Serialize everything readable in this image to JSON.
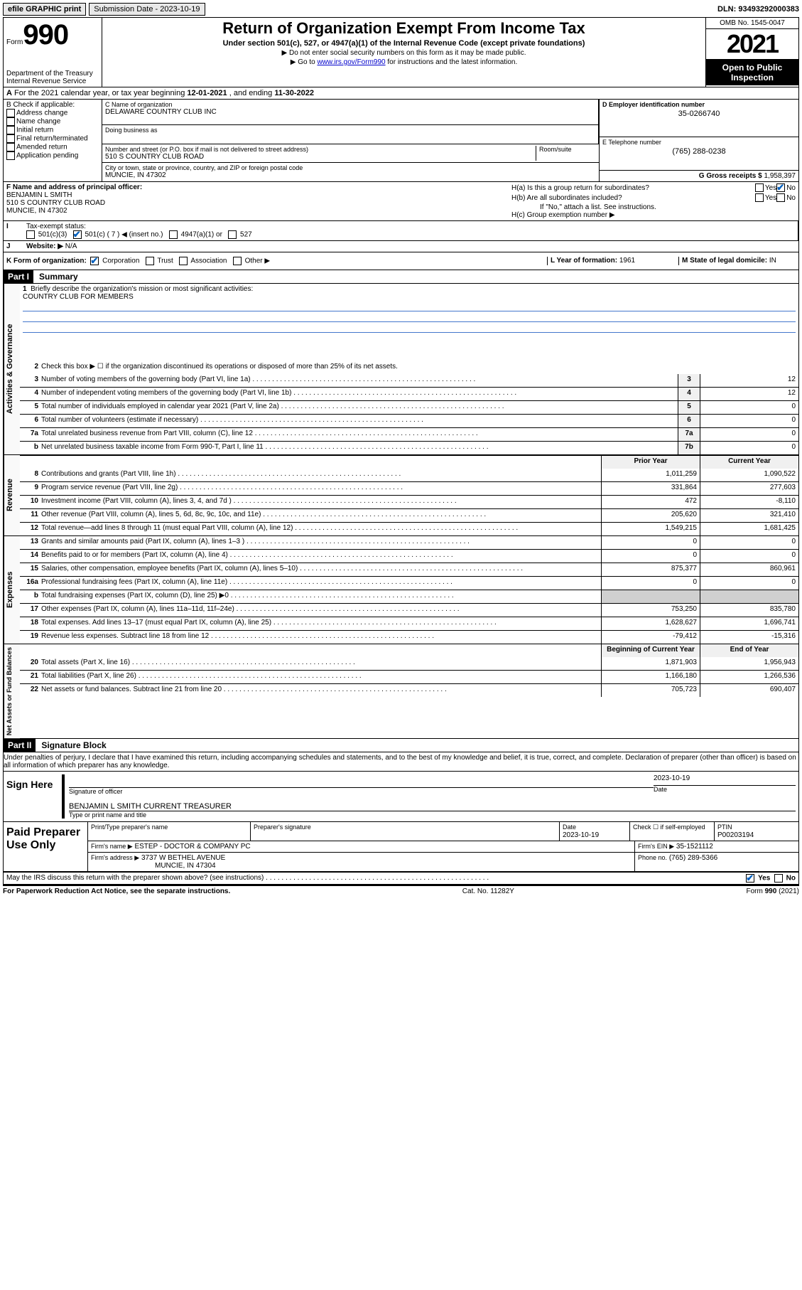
{
  "topbar": {
    "efile": "efile GRAPHIC print",
    "sub_label": "Submission Date - 2023-10-19",
    "dln": "DLN: 93493292000383"
  },
  "header": {
    "form_prefix": "Form",
    "form_num": "990",
    "dept": "Department of the Treasury",
    "irs": "Internal Revenue Service",
    "title": "Return of Organization Exempt From Income Tax",
    "sub1": "Under section 501(c), 527, or 4947(a)(1) of the Internal Revenue Code (except private foundations)",
    "sub2": "▶ Do not enter social security numbers on this form as it may be made public.",
    "sub3_pre": "▶ Go to ",
    "sub3_link": "www.irs.gov/Form990",
    "sub3_post": " for instructions and the latest information.",
    "omb": "OMB No. 1545-0047",
    "year": "2021",
    "open": "Open to Public Inspection"
  },
  "rowA": {
    "text_pre": "For the 2021 calendar year, or tax year beginning ",
    "begin": "12-01-2021",
    "mid": " , and ending ",
    "end": "11-30-2022"
  },
  "B": {
    "label": "B Check if applicable:",
    "items": [
      "Address change",
      "Name change",
      "Initial return",
      "Final return/terminated",
      "Amended return",
      "Application pending"
    ]
  },
  "C": {
    "name_label": "C Name of organization",
    "name": "DELAWARE COUNTRY CLUB INC",
    "dba_label": "Doing business as",
    "dba": "",
    "street_label": "Number and street (or P.O. box if mail is not delivered to street address)",
    "room_label": "Room/suite",
    "street": "510 S COUNTRY CLUB ROAD",
    "city_label": "City or town, state or province, country, and ZIP or foreign postal code",
    "city": "MUNCIE, IN  47302"
  },
  "D": {
    "label": "D Employer identification number",
    "val": "35-0266740"
  },
  "E": {
    "label": "E Telephone number",
    "val": "(765) 288-0238"
  },
  "G": {
    "label": "G Gross receipts $ ",
    "val": "1,958,397"
  },
  "F": {
    "label": "F Name and address of principal officer:",
    "name": "BENJAMIN L SMITH",
    "addr1": "510 S COUNTRY CLUB ROAD",
    "addr2": "MUNCIE, IN  47302"
  },
  "H": {
    "a": "H(a)  Is this a group return for subordinates?",
    "b": "H(b)  Are all subordinates included?",
    "b_note": "If \"No,\" attach a list. See instructions.",
    "c": "H(c)  Group exemption number ▶"
  },
  "I": {
    "label": "Tax-exempt status:",
    "opts": [
      "501(c)(3)",
      "501(c) ( 7 ) ◀ (insert no.)",
      "4947(a)(1) or",
      "527"
    ]
  },
  "J": {
    "label": "Website: ▶",
    "val": "N/A"
  },
  "K": {
    "label": "K Form of organization:",
    "opts": [
      "Corporation",
      "Trust",
      "Association",
      "Other ▶"
    ]
  },
  "L": {
    "label": "L Year of formation: ",
    "val": "1961"
  },
  "M": {
    "label": "M State of legal domicile: ",
    "val": "IN"
  },
  "part1": {
    "header": "Part I",
    "title": "Summary",
    "q1_label": "Briefly describe the organization's mission or most significant activities:",
    "q1_val": "COUNTRY CLUB FOR MEMBERS",
    "q2": "Check this box ▶ ☐  if the organization discontinued its operations or disposed of more than 25% of its net assets."
  },
  "gov_lines": [
    {
      "n": "3",
      "d": "Number of voting members of the governing body (Part VI, line 1a)",
      "box": "3",
      "v": "12"
    },
    {
      "n": "4",
      "d": "Number of independent voting members of the governing body (Part VI, line 1b)",
      "box": "4",
      "v": "12"
    },
    {
      "n": "5",
      "d": "Total number of individuals employed in calendar year 2021 (Part V, line 2a)",
      "box": "5",
      "v": "0"
    },
    {
      "n": "6",
      "d": "Total number of volunteers (estimate if necessary)",
      "box": "6",
      "v": "0"
    },
    {
      "n": "7a",
      "d": "Total unrelated business revenue from Part VIII, column (C), line 12",
      "box": "7a",
      "v": "0"
    },
    {
      "n": "b",
      "d": "Net unrelated business taxable income from Form 990-T, Part I, line 11",
      "box": "7b",
      "v": "0"
    }
  ],
  "twocol_head": {
    "prior": "Prior Year",
    "current": "Current Year"
  },
  "rev_lines": [
    {
      "n": "8",
      "d": "Contributions and grants (Part VIII, line 1h)",
      "p": "1,011,259",
      "c": "1,090,522"
    },
    {
      "n": "9",
      "d": "Program service revenue (Part VIII, line 2g)",
      "p": "331,864",
      "c": "277,603"
    },
    {
      "n": "10",
      "d": "Investment income (Part VIII, column (A), lines 3, 4, and 7d )",
      "p": "472",
      "c": "-8,110"
    },
    {
      "n": "11",
      "d": "Other revenue (Part VIII, column (A), lines 5, 6d, 8c, 9c, 10c, and 11e)",
      "p": "205,620",
      "c": "321,410"
    },
    {
      "n": "12",
      "d": "Total revenue—add lines 8 through 11 (must equal Part VIII, column (A), line 12)",
      "p": "1,549,215",
      "c": "1,681,425"
    }
  ],
  "exp_lines": [
    {
      "n": "13",
      "d": "Grants and similar amounts paid (Part IX, column (A), lines 1–3 )",
      "p": "0",
      "c": "0"
    },
    {
      "n": "14",
      "d": "Benefits paid to or for members (Part IX, column (A), line 4)",
      "p": "0",
      "c": "0"
    },
    {
      "n": "15",
      "d": "Salaries, other compensation, employee benefits (Part IX, column (A), lines 5–10)",
      "p": "875,377",
      "c": "860,961"
    },
    {
      "n": "16a",
      "d": "Professional fundraising fees (Part IX, column (A), line 11e)",
      "p": "0",
      "c": "0"
    },
    {
      "n": "b",
      "d": "Total fundraising expenses (Part IX, column (D), line 25) ▶0",
      "p": "",
      "c": "",
      "noborder": true
    },
    {
      "n": "17",
      "d": "Other expenses (Part IX, column (A), lines 11a–11d, 11f–24e)",
      "p": "753,250",
      "c": "835,780"
    },
    {
      "n": "18",
      "d": "Total expenses. Add lines 13–17 (must equal Part IX, column (A), line 25)",
      "p": "1,628,627",
      "c": "1,696,741"
    },
    {
      "n": "19",
      "d": "Revenue less expenses. Subtract line 18 from line 12",
      "p": "-79,412",
      "c": "-15,316"
    }
  ],
  "net_head": {
    "prior": "Beginning of Current Year",
    "current": "End of Year"
  },
  "net_lines": [
    {
      "n": "20",
      "d": "Total assets (Part X, line 16)",
      "p": "1,871,903",
      "c": "1,956,943"
    },
    {
      "n": "21",
      "d": "Total liabilities (Part X, line 26)",
      "p": "1,166,180",
      "c": "1,266,536"
    },
    {
      "n": "22",
      "d": "Net assets or fund balances. Subtract line 21 from line 20",
      "p": "705,723",
      "c": "690,407"
    }
  ],
  "part2": {
    "header": "Part II",
    "title": "Signature Block",
    "declare": "Under penalties of perjury, I declare that I have examined this return, including accompanying schedules and statements, and to the best of my knowledge and belief, it is true, correct, and complete. Declaration of preparer (other than officer) is based on all information of which preparer has any knowledge."
  },
  "sign": {
    "here": "Sign Here",
    "sig_label": "Signature of officer",
    "date_label": "Date",
    "date": "2023-10-19",
    "name": "BENJAMIN L SMITH  CURRENT TREASURER",
    "name_label": "Type or print name and title"
  },
  "paid": {
    "title": "Paid Preparer Use Only",
    "h1": "Print/Type preparer's name",
    "h2": "Preparer's signature",
    "h3": "Date",
    "h3v": "2023-10-19",
    "h4": "Check ☐ if self-employed",
    "h5": "PTIN",
    "h5v": "P00203194",
    "firm_name_l": "Firm's name    ▶",
    "firm_name": "ESTEP - DOCTOR & COMPANY PC",
    "firm_ein_l": "Firm's EIN ▶",
    "firm_ein": "35-1521112",
    "firm_addr_l": "Firm's address ▶",
    "firm_addr1": "3737 W BETHEL AVENUE",
    "firm_addr2": "MUNCIE, IN  47304",
    "phone_l": "Phone no.",
    "phone": "(765) 289-5366"
  },
  "may_irs": "May the IRS discuss this return with the preparer shown above? (see instructions)",
  "footer": {
    "left": "For Paperwork Reduction Act Notice, see the separate instructions.",
    "center": "Cat. No. 11282Y",
    "right": "Form 990 (2021)"
  },
  "yn": {
    "yes": "Yes",
    "no": "No"
  }
}
